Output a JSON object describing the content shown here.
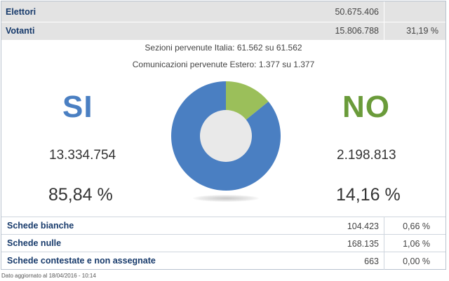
{
  "summary": {
    "elettori": {
      "label": "Elettori",
      "value": "50.675.406"
    },
    "votanti": {
      "label": "Votanti",
      "value": "15.806.788",
      "percent": "31,19 %"
    }
  },
  "info": {
    "sezioni": "Sezioni pervenute Italia: 61.562 su 61.562",
    "comunicazioni": "Comunicazioni pervenute Estero: 1.377 su 1.377"
  },
  "result": {
    "si": {
      "label": "SI",
      "votes": "13.334.754",
      "percent": "85,84 %",
      "share": 85.84,
      "color": "#4a7fc2"
    },
    "no": {
      "label": "NO",
      "votes": "2.198.813",
      "percent": "14,16 %",
      "share": 14.16,
      "color": "#9bbf5a"
    }
  },
  "schede": [
    {
      "label": "Schede bianche",
      "value": "104.423",
      "percent": "0,66 %"
    },
    {
      "label": "Schede nulle",
      "value": "168.135",
      "percent": "1,06 %"
    },
    {
      "label": "Schede contestate e non assegnate",
      "value": "663",
      "percent": "0,00 %"
    }
  ],
  "footer": "Dato aggiornato al 18/04/2016 - 10:14"
}
